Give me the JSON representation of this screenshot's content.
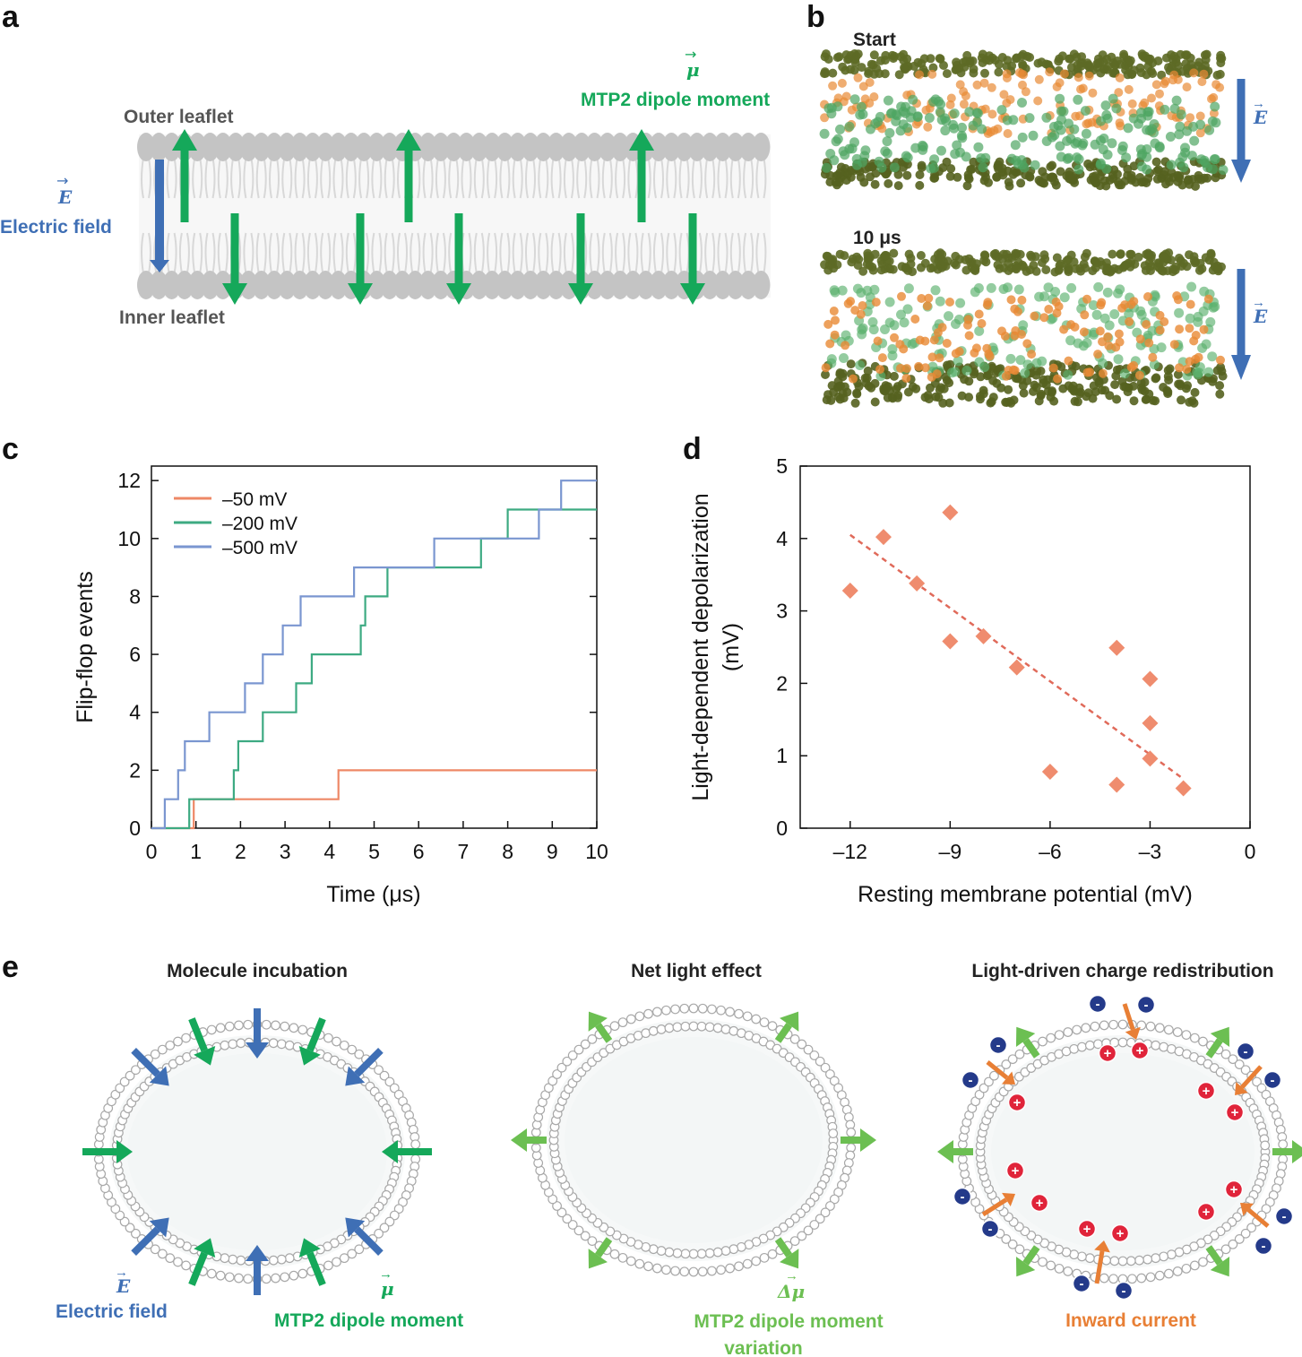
{
  "panel_labels": [
    "a",
    "b",
    "c",
    "d",
    "e"
  ],
  "colors": {
    "blue": "#3f6fb5",
    "green": "#15a85a",
    "light_green": "#6cbf52",
    "orange": "#e87f35",
    "red_marker": "#ef8c6e",
    "dark_olive": "#4f5a1f",
    "gray": "#c9c9c9"
  },
  "panel_a": {
    "outer_leaflet": "Outer leaflet",
    "inner_leaflet": "Inner leaflet",
    "field_symbol": "E",
    "field_label": "Electric field",
    "dipole_symbol": "μ",
    "dipole_label": "MTP2 dipole moment"
  },
  "panel_b": {
    "start_label": "Start",
    "end_label": "10 μs",
    "field_symbol": "E"
  },
  "chart_data": [
    {
      "panel": "c",
      "type": "line",
      "xlabel": "Time (μs)",
      "ylabel": "Flip-flop events",
      "xlim": [
        0,
        10
      ],
      "ylim": [
        0,
        12.5
      ],
      "xticks": [
        "0",
        "1",
        "2",
        "3",
        "4",
        "5",
        "6",
        "7",
        "8",
        "9",
        "10"
      ],
      "yticks": [
        "0",
        "2",
        "4",
        "6",
        "8",
        "10",
        "12"
      ],
      "series": [
        {
          "name": "–50 mV",
          "color": "#ee8866",
          "x": [
            0,
            0.95,
            0.95,
            4.2,
            4.2,
            10
          ],
          "y": [
            0,
            0,
            1,
            1,
            2,
            2
          ]
        },
        {
          "name": "–200 mV",
          "color": "#3daa82",
          "x": [
            0,
            0.85,
            0.85,
            1.85,
            1.85,
            1.95,
            1.95,
            2.5,
            2.5,
            2.55,
            2.55,
            2.7,
            2.7,
            3.25,
            3.25,
            3.6,
            3.6,
            4.7,
            4.7,
            4.8,
            4.8,
            5.3,
            5.3,
            7.4,
            7.4,
            8.0,
            8.0,
            10
          ],
          "y": [
            0,
            0,
            1,
            1,
            2,
            2,
            3,
            3,
            4,
            4,
            4,
            4,
            4,
            4,
            5,
            5,
            6,
            6,
            7,
            7,
            8,
            8,
            9,
            9,
            10,
            10,
            11,
            11
          ]
        },
        {
          "name": "–500 mV",
          "color": "#7a96d0",
          "x": [
            0,
            0.3,
            0.3,
            0.6,
            0.6,
            0.75,
            0.75,
            1.3,
            1.3,
            2.1,
            2.1,
            2.5,
            2.5,
            2.95,
            2.95,
            3.35,
            3.35,
            4.55,
            4.55,
            6.35,
            6.35,
            8.7,
            8.7,
            9.2,
            9.2,
            10
          ],
          "y": [
            0,
            0,
            1,
            1,
            2,
            2,
            3,
            3,
            4,
            4,
            5,
            5,
            6,
            6,
            7,
            7,
            8,
            8,
            9,
            9,
            10,
            10,
            11,
            11,
            12,
            12
          ]
        }
      ]
    },
    {
      "panel": "d",
      "type": "scatter",
      "xlabel": "Resting membrane potential (mV)",
      "ylabel": [
        "Light-dependent depolarization",
        "(mV)"
      ],
      "xlim": [
        -13.5,
        0
      ],
      "ylim": [
        0,
        5
      ],
      "xticks": [
        "–12",
        "–9",
        "–6",
        "–3",
        "0"
      ],
      "yticks": [
        "0",
        "1",
        "2",
        "3",
        "4",
        "5"
      ],
      "points": [
        {
          "x": -12,
          "y": 3.28
        },
        {
          "x": -11,
          "y": 4.02
        },
        {
          "x": -10,
          "y": 3.38
        },
        {
          "x": -9,
          "y": 4.36
        },
        {
          "x": -9,
          "y": 2.58
        },
        {
          "x": -8,
          "y": 2.65
        },
        {
          "x": -7,
          "y": 2.22
        },
        {
          "x": -6,
          "y": 0.78
        },
        {
          "x": -4,
          "y": 2.49
        },
        {
          "x": -4,
          "y": 0.6
        },
        {
          "x": -3,
          "y": 2.06
        },
        {
          "x": -3,
          "y": 1.45
        },
        {
          "x": -3,
          "y": 0.96
        },
        {
          "x": -2,
          "y": 0.55
        }
      ],
      "fit": {
        "x": [
          -12,
          -2
        ],
        "y": [
          4.05,
          0.68
        ]
      }
    }
  ],
  "panel_e": {
    "titles": [
      "Molecule incubation",
      "Net light effect",
      "Light-driven charge redistribution"
    ],
    "field_symbol": "E",
    "field_label": "Electric field",
    "dipole_symbol": "μ",
    "dipole_label": "MTP2 dipole moment",
    "delta_symbol": "Δμ",
    "delta_label_line1": "MTP2 dipole moment",
    "delta_label_line2": "variation",
    "current_label": "Inward current",
    "plus": "+",
    "minus": "-"
  }
}
